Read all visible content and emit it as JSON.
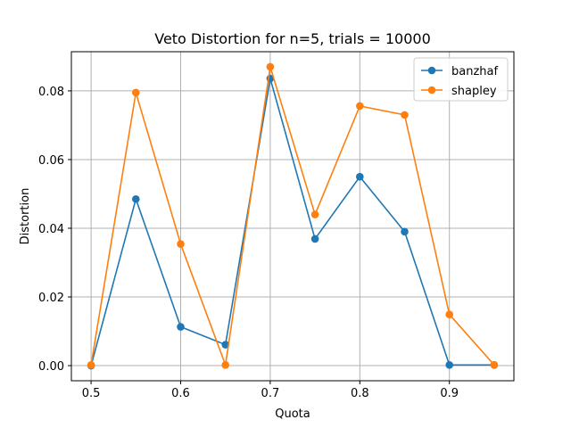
{
  "chart_data": {
    "type": "line",
    "title": "Veto Distortion for n=5, trials = 10000",
    "xlabel": "Quota",
    "ylabel": "Distortion",
    "x": [
      0.5,
      0.55,
      0.6,
      0.65,
      0.7,
      0.75,
      0.8,
      0.85,
      0.9,
      0.95
    ],
    "series": [
      {
        "name": "banzhaf",
        "color": "#1f77b4",
        "values": [
          0.0,
          0.0485,
          0.0113,
          0.0061,
          0.0836,
          0.0369,
          0.055,
          0.039,
          0.0002,
          0.0002
        ]
      },
      {
        "name": "shapley",
        "color": "#ff7f0e",
        "values": [
          0.0002,
          0.0795,
          0.0354,
          0.0002,
          0.087,
          0.044,
          0.0756,
          0.073,
          0.0149,
          0.0002
        ]
      }
    ],
    "xlim": [
      0.478,
      0.972
    ],
    "ylim": [
      -0.0044,
      0.0914
    ],
    "xticks": [
      0.5,
      0.6,
      0.7,
      0.8,
      0.9
    ],
    "xtick_labels": [
      "0.5",
      "0.6",
      "0.7",
      "0.8",
      "0.9"
    ],
    "yticks": [
      0.0,
      0.02,
      0.04,
      0.06,
      0.08
    ],
    "ytick_labels": [
      "0.00",
      "0.02",
      "0.04",
      "0.06",
      "0.08"
    ],
    "grid": true,
    "legend_position": "upper-right"
  }
}
